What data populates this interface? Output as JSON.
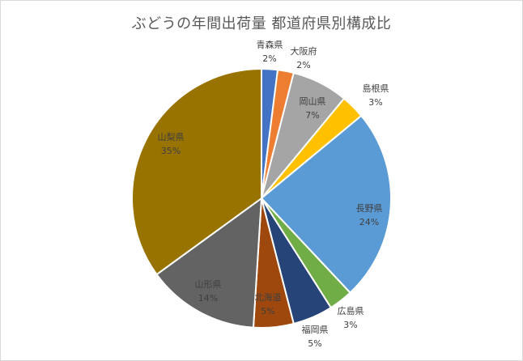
{
  "chart_data": {
    "type": "pie",
    "title": "ぶどうの年間出荷量 都道府県別構成比",
    "slices": [
      {
        "label": "青森県",
        "value": 2,
        "pct": "2%",
        "color": "#4472c4"
      },
      {
        "label": "大阪府",
        "value": 2,
        "pct": "2%",
        "color": "#ed7d31"
      },
      {
        "label": "岡山県",
        "value": 7,
        "pct": "7%",
        "color": "#a5a5a5"
      },
      {
        "label": "島根県",
        "value": 3,
        "pct": "3%",
        "color": "#ffc000"
      },
      {
        "label": "長野県",
        "value": 24,
        "pct": "24%",
        "color": "#5b9bd5"
      },
      {
        "label": "広島県",
        "value": 3,
        "pct": "3%",
        "color": "#70ad47"
      },
      {
        "label": "福岡県",
        "value": 5,
        "pct": "5%",
        "color": "#264478"
      },
      {
        "label": "北海道",
        "value": 5,
        "pct": "5%",
        "color": "#9e480e"
      },
      {
        "label": "山形県",
        "value": 14,
        "pct": "14%",
        "color": "#636363"
      },
      {
        "label": "山梨県",
        "value": 35,
        "pct": "35%",
        "color": "#997300"
      }
    ]
  }
}
